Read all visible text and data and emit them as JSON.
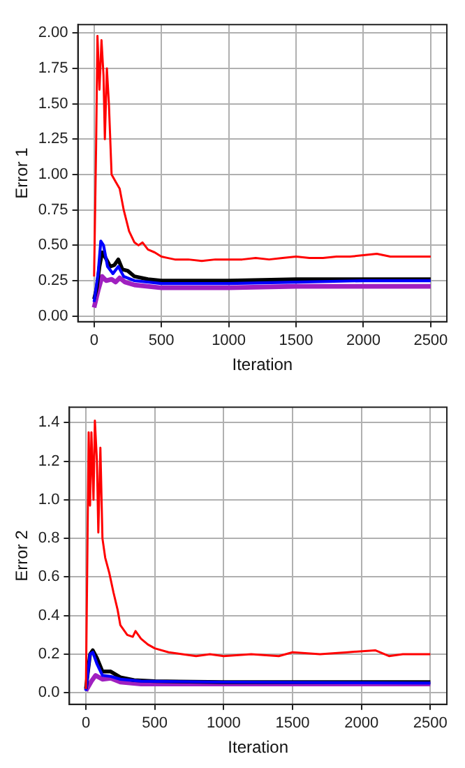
{
  "chart_data": [
    {
      "type": "line",
      "xlabel": "Iteration",
      "ylabel": "Error 1",
      "grid": true,
      "legend": false,
      "marker": "none",
      "line_style": "solid",
      "xlim": [
        -120,
        2620
      ],
      "xticks": [
        0,
        500,
        1000,
        1500,
        2000,
        2500
      ],
      "ylim": [
        -0.04,
        2.06
      ],
      "yticks": [
        {
          "value": 0,
          "label": "0.00"
        },
        {
          "value": 0.25,
          "label": "0.25"
        },
        {
          "value": 0.5,
          "label": "0.50"
        },
        {
          "value": 0.75,
          "label": "0.75"
        },
        {
          "value": 1,
          "label": "1.00"
        },
        {
          "value": 1.25,
          "label": "1.25"
        },
        {
          "value": 1.5,
          "label": "1.50"
        },
        {
          "value": 1.75,
          "label": "1.75"
        },
        {
          "value": 2,
          "label": "2.00"
        }
      ],
      "series": [
        {
          "color": "#ff0000",
          "x": [
            0,
            15,
            25,
            40,
            55,
            70,
            80,
            95,
            110,
            130,
            160,
            190,
            220,
            260,
            300,
            330,
            360,
            400,
            450,
            500,
            550,
            600,
            700,
            800,
            900,
            1000,
            1100,
            1200,
            1300,
            1400,
            1500,
            1600,
            1700,
            1800,
            1900,
            2000,
            2100,
            2200,
            2300,
            2400,
            2500
          ],
          "values": [
            0.28,
            1.2,
            1.98,
            1.6,
            1.95,
            1.7,
            1.25,
            1.75,
            1.5,
            1.0,
            0.95,
            0.9,
            0.75,
            0.6,
            0.52,
            0.5,
            0.52,
            0.47,
            0.45,
            0.42,
            0.41,
            0.4,
            0.4,
            0.39,
            0.4,
            0.4,
            0.4,
            0.41,
            0.4,
            0.41,
            0.42,
            0.41,
            0.41,
            0.42,
            0.42,
            0.43,
            0.44,
            0.42,
            0.42,
            0.42,
            0.42
          ]
        },
        {
          "color": "#0000ff",
          "x": [
            0,
            30,
            50,
            70,
            100,
            140,
            180,
            220,
            300,
            500,
            1000,
            1500,
            2000,
            2500
          ],
          "values": [
            0.1,
            0.3,
            0.53,
            0.5,
            0.35,
            0.3,
            0.35,
            0.28,
            0.25,
            0.23,
            0.23,
            0.24,
            0.25,
            0.25
          ]
        },
        {
          "color": "#000000",
          "x": [
            0,
            20,
            40,
            60,
            80,
            120,
            150,
            180,
            210,
            250,
            300,
            400,
            500,
            1000,
            1500,
            2000,
            2500
          ],
          "values": [
            0.12,
            0.2,
            0.35,
            0.45,
            0.42,
            0.35,
            0.36,
            0.4,
            0.33,
            0.32,
            0.28,
            0.26,
            0.25,
            0.25,
            0.26,
            0.26,
            0.26
          ]
        },
        {
          "color": "#a020c0",
          "x": [
            0,
            30,
            60,
            90,
            130,
            160,
            190,
            230,
            300,
            500,
            1000,
            1500,
            2000,
            2500
          ],
          "values": [
            0.06,
            0.18,
            0.28,
            0.25,
            0.26,
            0.24,
            0.27,
            0.24,
            0.22,
            0.2,
            0.2,
            0.21,
            0.21,
            0.21
          ]
        }
      ]
    },
    {
      "type": "line",
      "xlabel": "Iteration",
      "ylabel": "Error 2",
      "grid": true,
      "legend": false,
      "marker": "none",
      "line_style": "solid",
      "xlim": [
        -120,
        2620
      ],
      "xticks": [
        0,
        500,
        1000,
        1500,
        2000,
        2500
      ],
      "ylim": [
        -0.06,
        1.48
      ],
      "yticks": [
        {
          "value": 0,
          "label": "0.0"
        },
        {
          "value": 0.2,
          "label": "0.2"
        },
        {
          "value": 0.4,
          "label": "0.4"
        },
        {
          "value": 0.6,
          "label": "0.6"
        },
        {
          "value": 0.8,
          "label": "0.8"
        },
        {
          "value": 1,
          "label": "1.0"
        },
        {
          "value": 1.2,
          "label": "1.2"
        },
        {
          "value": 1.4,
          "label": "1.4"
        }
      ],
      "series": [
        {
          "color": "#ff0000",
          "x": [
            0,
            20,
            30,
            40,
            55,
            65,
            80,
            90,
            105,
            120,
            140,
            170,
            200,
            230,
            250,
            300,
            340,
            360,
            400,
            450,
            500,
            600,
            700,
            800,
            900,
            1000,
            1200,
            1400,
            1500,
            1700,
            1900,
            2100,
            2200,
            2300,
            2500
          ],
          "values": [
            0.02,
            1.35,
            0.97,
            1.35,
            1.0,
            1.41,
            1.2,
            0.83,
            1.27,
            0.8,
            0.7,
            0.62,
            0.52,
            0.43,
            0.35,
            0.3,
            0.29,
            0.32,
            0.28,
            0.25,
            0.23,
            0.21,
            0.2,
            0.19,
            0.2,
            0.19,
            0.2,
            0.19,
            0.21,
            0.2,
            0.21,
            0.22,
            0.19,
            0.2,
            0.2
          ]
        },
        {
          "color": "#0000ff",
          "x": [
            0,
            30,
            50,
            80,
            120,
            180,
            250,
            400,
            1000,
            2500
          ],
          "values": [
            0.01,
            0.2,
            0.21,
            0.15,
            0.09,
            0.085,
            0.07,
            0.06,
            0.055,
            0.05
          ]
        },
        {
          "color": "#000000",
          "x": [
            0,
            30,
            50,
            80,
            120,
            180,
            250,
            350,
            500,
            1000,
            2500
          ],
          "values": [
            0.02,
            0.2,
            0.22,
            0.18,
            0.11,
            0.11,
            0.08,
            0.065,
            0.06,
            0.055,
            0.055
          ]
        },
        {
          "color": "#a020c0",
          "x": [
            0,
            40,
            70,
            120,
            180,
            250,
            400,
            1000,
            2500
          ],
          "values": [
            0.01,
            0.06,
            0.09,
            0.07,
            0.075,
            0.055,
            0.045,
            0.045,
            0.045
          ]
        }
      ]
    }
  ]
}
